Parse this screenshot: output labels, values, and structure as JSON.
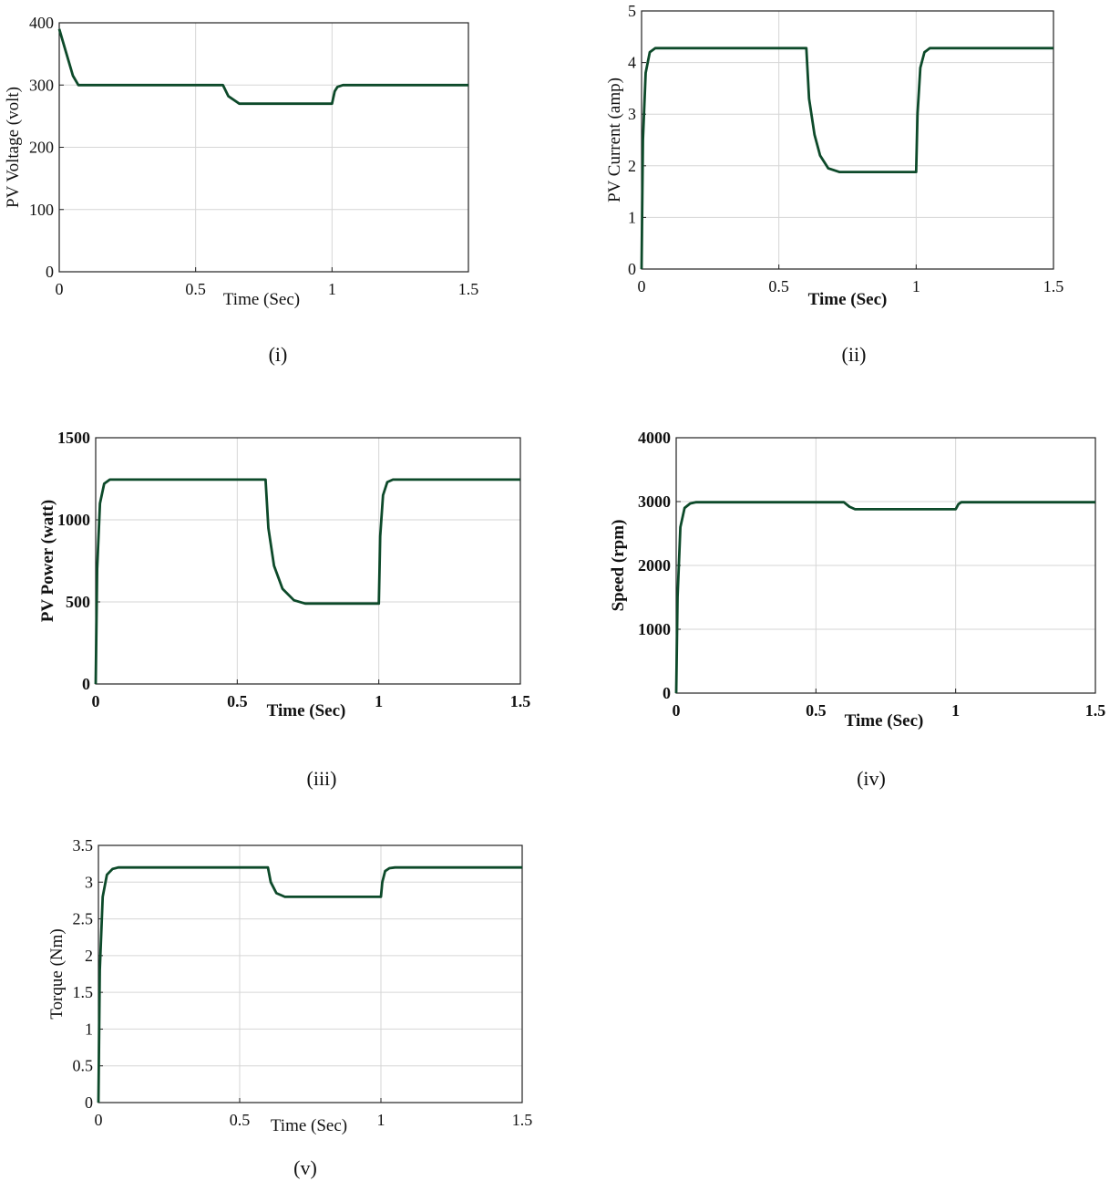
{
  "chart_data": [
    {
      "type": "line",
      "caption": "(i)",
      "ylabel": "PV Voltage (volt)",
      "xlabel": "Time (Sec)",
      "xlim": [
        0,
        1.5
      ],
      "ylim": [
        0,
        400
      ],
      "xticks": [
        0,
        0.5,
        1,
        1.5
      ],
      "xtick_labels": [
        "0",
        "0.5",
        "1",
        "1.5"
      ],
      "yticks": [
        0,
        100,
        200,
        300,
        400
      ],
      "ytick_labels": [
        "0",
        "100",
        "200",
        "300",
        "400"
      ],
      "series": [
        {
          "name": "PV Voltage",
          "x": [
            0,
            0.02,
            0.05,
            0.07,
            0.6,
            0.62,
            0.66,
            1.0,
            1.01,
            1.02,
            1.04,
            1.5
          ],
          "y": [
            390,
            360,
            315,
            300,
            300,
            282,
            270,
            270,
            290,
            297,
            300,
            300
          ]
        }
      ],
      "color": "#0d4a2a"
    },
    {
      "type": "line",
      "caption": "(ii)",
      "ylabel": "PV Current (amp)",
      "xlabel": "Time (Sec)",
      "xlim": [
        0,
        1.5
      ],
      "ylim": [
        0,
        5
      ],
      "xticks": [
        0,
        0.5,
        1,
        1.5
      ],
      "xtick_labels": [
        "0",
        "0.5",
        "1",
        "1.5"
      ],
      "yticks": [
        0,
        1,
        2,
        3,
        4,
        5
      ],
      "ytick_labels": [
        "0",
        "1",
        "2",
        "3",
        "4",
        "5"
      ],
      "series": [
        {
          "name": "PV Current",
          "x": [
            0,
            0.005,
            0.015,
            0.03,
            0.05,
            0.6,
            0.61,
            0.63,
            0.65,
            0.68,
            0.72,
            1.0,
            1.005,
            1.015,
            1.03,
            1.05,
            1.5
          ],
          "y": [
            0,
            2.5,
            3.8,
            4.2,
            4.28,
            4.28,
            3.3,
            2.6,
            2.2,
            1.95,
            1.88,
            1.88,
            3.0,
            3.9,
            4.2,
            4.28,
            4.28
          ]
        }
      ],
      "color": "#0d4a2a"
    },
    {
      "type": "line",
      "caption": "(iii)",
      "ylabel": "PV Power (watt)",
      "xlabel": "Time (Sec)",
      "xlim": [
        0,
        1.5
      ],
      "ylim": [
        0,
        1500
      ],
      "xticks": [
        0,
        0.5,
        1,
        1.5
      ],
      "xtick_labels": [
        "0",
        "0.5",
        "1",
        "1.5"
      ],
      "yticks": [
        0,
        500,
        1000,
        1500
      ],
      "ytick_labels": [
        "0",
        "500",
        "1000",
        "1500"
      ],
      "series": [
        {
          "name": "PV Power",
          "x": [
            0,
            0.005,
            0.015,
            0.03,
            0.05,
            0.6,
            0.61,
            0.63,
            0.66,
            0.7,
            0.74,
            1.0,
            1.005,
            1.015,
            1.03,
            1.05,
            1.5
          ],
          "y": [
            0,
            700,
            1100,
            1220,
            1245,
            1245,
            950,
            720,
            580,
            510,
            490,
            490,
            900,
            1150,
            1230,
            1245,
            1245
          ]
        }
      ],
      "color": "#0d4a2a"
    },
    {
      "type": "line",
      "caption": "(iv)",
      "ylabel": "Speed (rpm)",
      "xlabel": "Time (Sec)",
      "xlim": [
        0,
        1.5
      ],
      "ylim": [
        0,
        4000
      ],
      "xticks": [
        0,
        0.5,
        1,
        1.5
      ],
      "xtick_labels": [
        "0",
        "0.5",
        "1",
        "1.5"
      ],
      "yticks": [
        0,
        1000,
        2000,
        3000,
        4000
      ],
      "ytick_labels": [
        "0",
        "1000",
        "2000",
        "3000",
        "4000"
      ],
      "series": [
        {
          "name": "Speed",
          "x": [
            0,
            0.005,
            0.015,
            0.03,
            0.05,
            0.07,
            0.6,
            0.62,
            0.64,
            1.0,
            1.01,
            1.02,
            1.5
          ],
          "y": [
            0,
            1500,
            2600,
            2900,
            2970,
            2990,
            2990,
            2920,
            2880,
            2880,
            2960,
            2990,
            2990
          ]
        }
      ],
      "color": "#0d4a2a"
    },
    {
      "type": "line",
      "caption": "(v)",
      "ylabel": "Torque (Nm)",
      "xlabel": "Time (Sec)",
      "xlim": [
        0,
        1.5
      ],
      "ylim": [
        0,
        3.5
      ],
      "xticks": [
        0,
        0.5,
        1,
        1.5
      ],
      "xtick_labels": [
        "0",
        "0.5",
        "1",
        "1.5"
      ],
      "yticks": [
        0,
        0.5,
        1,
        1.5,
        2,
        2.5,
        3,
        3.5
      ],
      "ytick_labels": [
        "0",
        "0.5",
        "1",
        "1.5",
        "2",
        "2.5",
        "3",
        "3.5"
      ],
      "series": [
        {
          "name": "Torque",
          "x": [
            0,
            0.005,
            0.015,
            0.03,
            0.05,
            0.07,
            0.6,
            0.61,
            0.63,
            0.66,
            1.0,
            1.005,
            1.015,
            1.03,
            1.05,
            1.5
          ],
          "y": [
            0,
            1.8,
            2.8,
            3.1,
            3.18,
            3.2,
            3.2,
            3.0,
            2.85,
            2.8,
            2.8,
            3.0,
            3.15,
            3.19,
            3.2,
            3.2
          ]
        }
      ],
      "color": "#0d4a2a"
    }
  ]
}
